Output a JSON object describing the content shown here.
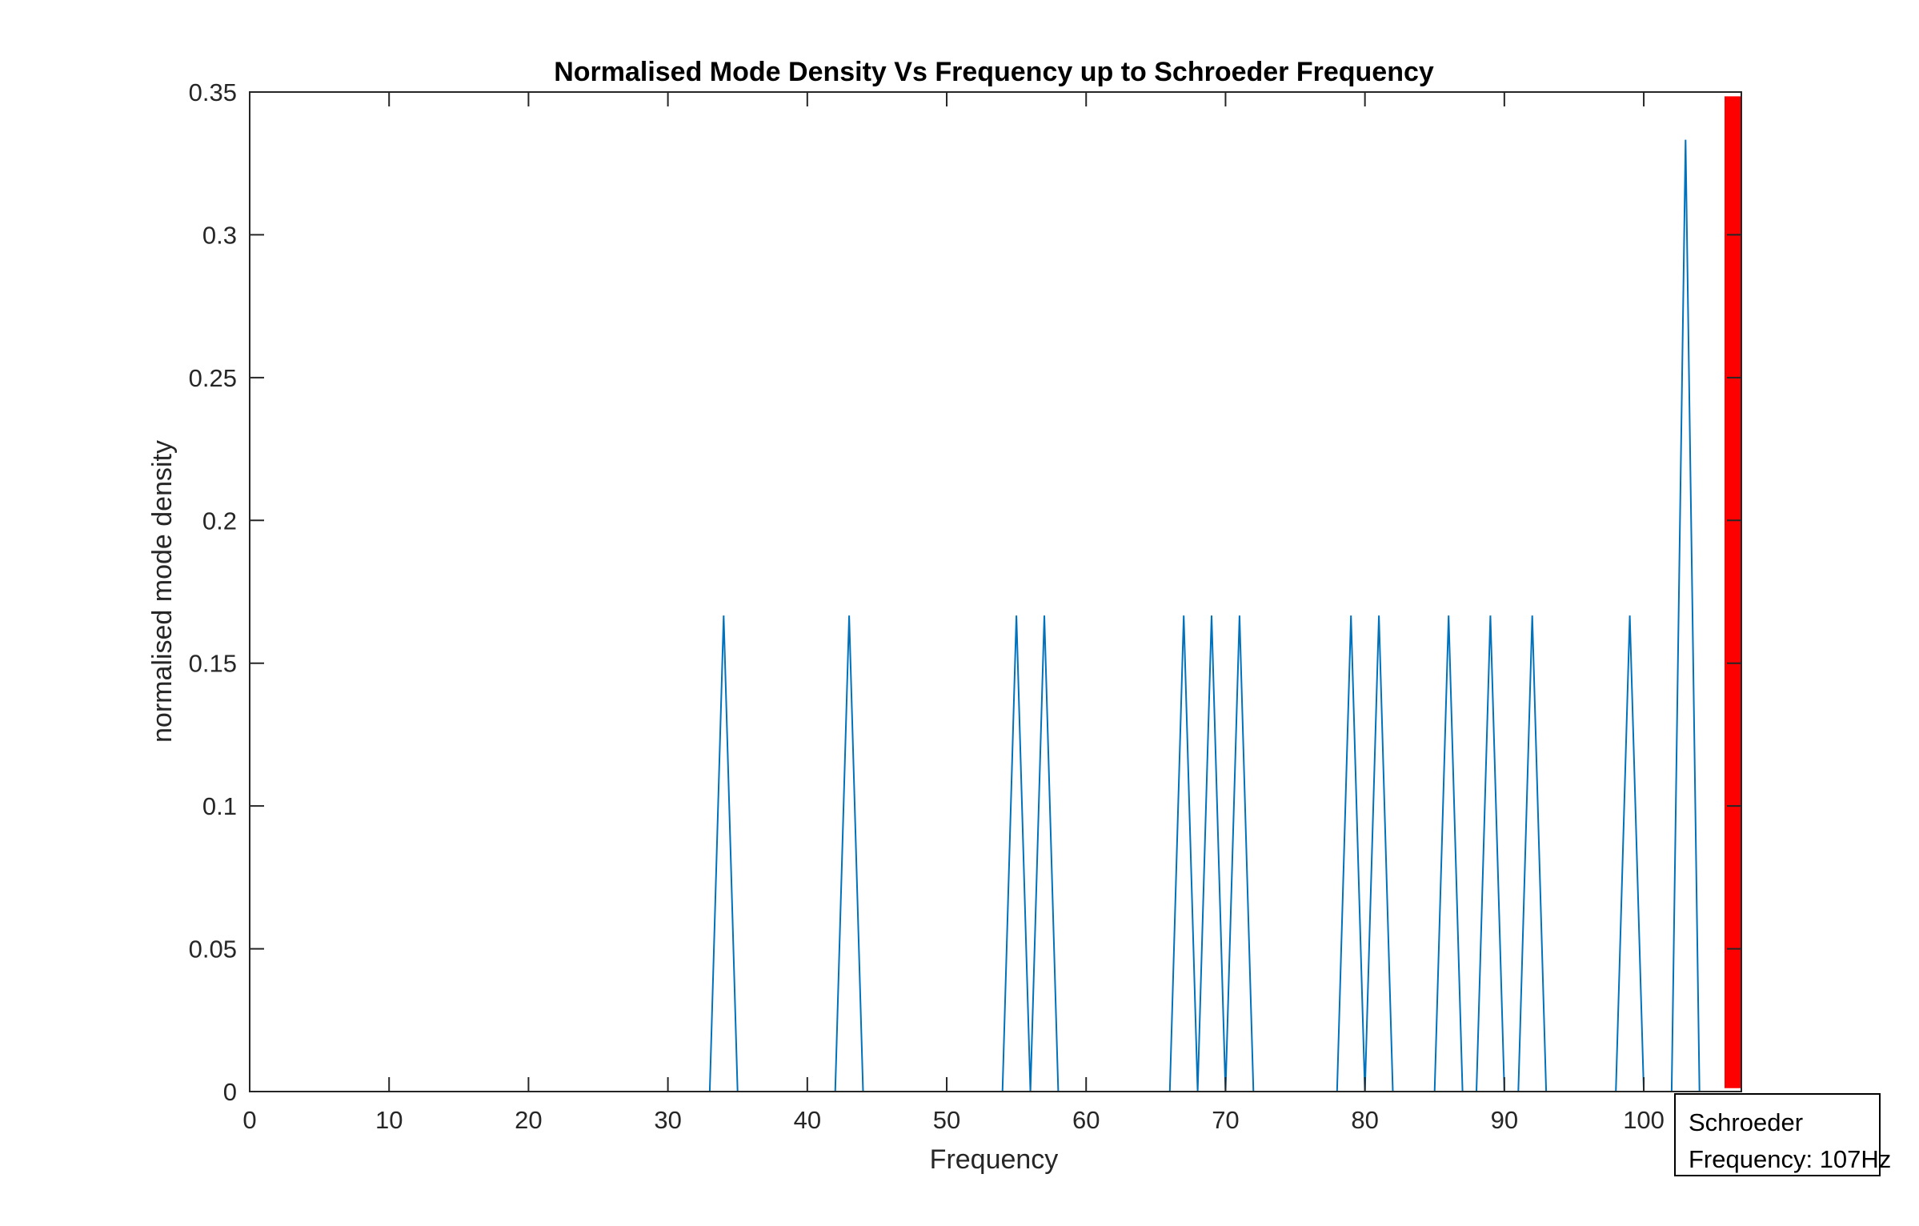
{
  "chart_data": {
    "type": "line",
    "title": "Normalised Mode Density Vs Frequency up to Schroeder Frequency",
    "xlabel": "Frequency",
    "ylabel": "normalised mode density",
    "xlim": [
      0,
      107
    ],
    "ylim": [
      0,
      0.35
    ],
    "xticks": [
      "0",
      "10",
      "20",
      "30",
      "40",
      "50",
      "60",
      "70",
      "80",
      "90",
      "100"
    ],
    "yticks": [
      "0",
      "0.05",
      "0.1",
      "0.15",
      "0.2",
      "0.25",
      "0.3",
      "0.35"
    ],
    "grid": false,
    "series": [
      {
        "color": "#0072BD",
        "x": [
          1,
          33,
          34,
          35,
          42,
          43,
          44,
          54,
          55,
          56,
          57,
          58,
          66,
          67,
          68,
          69,
          70,
          71,
          72,
          78,
          79,
          80,
          81,
          82,
          85,
          86,
          87,
          88,
          89,
          90,
          91,
          92,
          93,
          98,
          99,
          100,
          102,
          103,
          104,
          106
        ],
        "y": [
          0,
          0,
          0.1667,
          0,
          0,
          0.1667,
          0,
          0,
          0.1667,
          0,
          0.1667,
          0,
          0,
          0.1667,
          0,
          0.1667,
          0,
          0.1667,
          0,
          0,
          0.1667,
          0,
          0.1667,
          0,
          0,
          0.1667,
          0,
          0,
          0.1667,
          0,
          0,
          0.1667,
          0,
          0,
          0.1667,
          0,
          0,
          0.3333,
          0,
          0
        ]
      }
    ],
    "vertical_line": {
      "x": 107,
      "color": "#FF0000"
    },
    "annotation": {
      "line1": "Schroeder",
      "line2": "Frequency: 107Hz"
    }
  }
}
